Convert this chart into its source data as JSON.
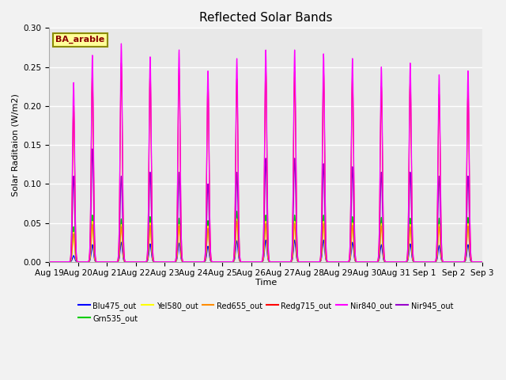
{
  "title": "Reflected Solar Bands",
  "xlabel": "Time",
  "ylabel": "Solar Raditaion (W/m2)",
  "annotation_text": "BA_arable",
  "annotation_color": "#8B0000",
  "annotation_bg": "#FFFF99",
  "annotation_border": "#8B8B00",
  "ylim": [
    0.0,
    0.3
  ],
  "num_days": 15,
  "series": [
    {
      "name": "Blu475_out",
      "color": "#0000FF"
    },
    {
      "name": "Grn535_out",
      "color": "#00CC00"
    },
    {
      "name": "Yel580_out",
      "color": "#FFFF00"
    },
    {
      "name": "Red655_out",
      "color": "#FF8C00"
    },
    {
      "name": "Redg715_out",
      "color": "#FF0000"
    },
    {
      "name": "Nir840_out",
      "color": "#FF00FF"
    },
    {
      "name": "Nir945_out",
      "color": "#9900CC"
    }
  ],
  "tick_labels": [
    "Aug 19",
    "Aug 20",
    "Aug 21",
    "Aug 22",
    "Aug 23",
    "Aug 24",
    "Aug 25",
    "Aug 26",
    "Aug 27",
    "Aug 28",
    "Aug 29",
    "Aug 30",
    "Aug 31",
    "Sep 1",
    "Sep 2",
    "Sep 3"
  ],
  "background_color": "#E8E8E8",
  "grid_color": "#FFFFFF",
  "peaks_nir840": [
    0.23,
    0.265,
    0.28,
    0.263,
    0.272,
    0.245,
    0.261,
    0.272,
    0.272,
    0.267,
    0.261,
    0.25,
    0.255,
    0.24,
    0.245
  ],
  "peaks_redg715": [
    0.2,
    0.24,
    0.255,
    0.245,
    0.248,
    0.23,
    0.235,
    0.25,
    0.245,
    0.245,
    0.24,
    0.225,
    0.235,
    0.215,
    0.22
  ],
  "peaks_nir945": [
    0.11,
    0.145,
    0.11,
    0.115,
    0.115,
    0.1,
    0.115,
    0.133,
    0.133,
    0.126,
    0.122,
    0.115,
    0.115,
    0.11,
    0.11
  ],
  "peaks_grn535": [
    0.045,
    0.06,
    0.055,
    0.058,
    0.056,
    0.053,
    0.065,
    0.06,
    0.06,
    0.06,
    0.058,
    0.057,
    0.056,
    0.056,
    0.057
  ],
  "peaks_yel580": [
    0.038,
    0.052,
    0.048,
    0.05,
    0.048,
    0.046,
    0.055,
    0.052,
    0.052,
    0.052,
    0.05,
    0.049,
    0.048,
    0.048,
    0.049
  ],
  "peaks_red655": [
    0.036,
    0.048,
    0.045,
    0.047,
    0.046,
    0.043,
    0.052,
    0.049,
    0.049,
    0.049,
    0.047,
    0.046,
    0.045,
    0.045,
    0.046
  ],
  "peaks_blu475": [
    0.008,
    0.022,
    0.025,
    0.023,
    0.024,
    0.02,
    0.027,
    0.028,
    0.028,
    0.028,
    0.025,
    0.022,
    0.023,
    0.021,
    0.022
  ]
}
